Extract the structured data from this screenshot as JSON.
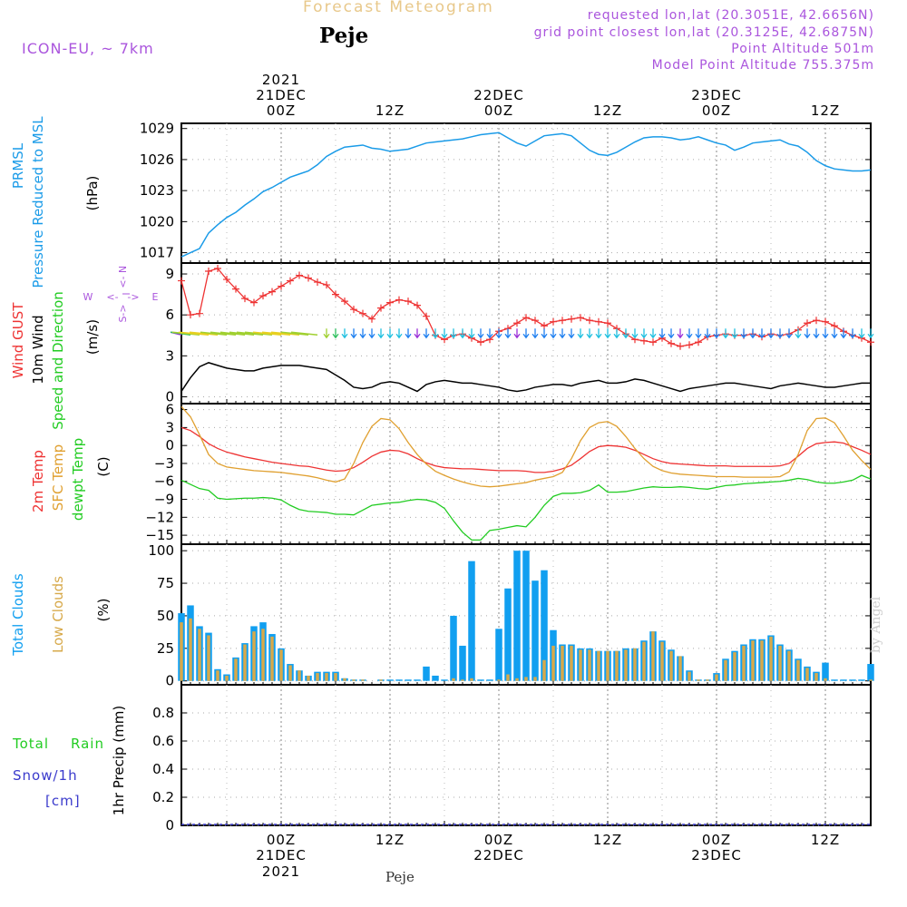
{
  "header": {
    "title": "Forecast Meteogram",
    "location": "Peje",
    "model": "ICON-EU, ~ 7km",
    "requested": "requested lon,lat (20.3051E, 42.6656N)",
    "grid_point": "grid point closest lon,lat (20.3125E, 42.6875N)",
    "point_altitude": "Point Altitude 501m",
    "model_altitude": "Model Point Altitude 755.375m",
    "footer_location": "Peje",
    "watermark": "by Angel"
  },
  "colors": {
    "pressure": "#1a9be8",
    "gust": "#ee3333",
    "wind": "#000000",
    "temp": "#ee3333",
    "sfc_temp": "#e0a030",
    "dewpt": "#22cc22",
    "total_clouds": "#119ff0",
    "low_clouds": "#d7a94a",
    "precip": "#3a3acc",
    "annot": "#aa55dd"
  },
  "time_axis": {
    "year": "2021",
    "ticks": [
      "00Z",
      "12Z",
      "00Z",
      "12Z",
      "00Z",
      "12Z"
    ],
    "ticks_hours": [
      0,
      12,
      24,
      36,
      48,
      60
    ],
    "dates": [
      {
        "hour": 0,
        "label": "21DEC"
      },
      {
        "hour": 24,
        "label": "22DEC"
      },
      {
        "hour": 48,
        "label": "23DEC"
      }
    ],
    "range_hours": [
      -11,
      65
    ]
  },
  "chart_data": [
    {
      "id": "pressure",
      "type": "line",
      "ylabel_lines": [
        "PRMSL",
        "Pressure Reduced to MSL"
      ],
      "unit": "(hPa)",
      "ylim": [
        1016,
        1029.5
      ],
      "yticks": [
        1017,
        1020,
        1023,
        1026,
        1029
      ],
      "x": [
        -11,
        -10,
        -9,
        -8,
        -7,
        -6,
        -5,
        -4,
        -3,
        -2,
        -1,
        0,
        1,
        2,
        3,
        4,
        5,
        6,
        7,
        8,
        9,
        10,
        11,
        12,
        13,
        14,
        15,
        16,
        17,
        18,
        19,
        20,
        21,
        22,
        23,
        24,
        25,
        26,
        27,
        28,
        29,
        30,
        31,
        32,
        33,
        34,
        35,
        36,
        37,
        38,
        39,
        40,
        41,
        42,
        43,
        44,
        45,
        46,
        47,
        48,
        49,
        50,
        51,
        52,
        53,
        54,
        55,
        56,
        57,
        58,
        59,
        60,
        61,
        62,
        63,
        64,
        65
      ],
      "series": [
        {
          "name": "PRMSL",
          "values": [
            1016.6,
            1017.0,
            1017.4,
            1018.9,
            1019.7,
            1020.4,
            1020.9,
            1021.6,
            1022.2,
            1022.9,
            1023.3,
            1023.8,
            1024.3,
            1024.6,
            1024.9,
            1025.5,
            1026.3,
            1026.8,
            1027.2,
            1027.3,
            1027.4,
            1027.1,
            1027.0,
            1026.8,
            1026.9,
            1027.0,
            1027.3,
            1027.6,
            1027.7,
            1027.8,
            1027.9,
            1028.0,
            1028.2,
            1028.4,
            1028.5,
            1028.6,
            1028.1,
            1027.6,
            1027.3,
            1027.8,
            1028.3,
            1028.4,
            1028.5,
            1028.3,
            1027.6,
            1026.9,
            1026.5,
            1026.4,
            1026.7,
            1027.2,
            1027.7,
            1028.1,
            1028.2,
            1028.2,
            1028.1,
            1027.9,
            1028.0,
            1028.2,
            1027.9,
            1027.6,
            1027.4,
            1026.9,
            1027.2,
            1027.6,
            1027.7,
            1027.8,
            1027.9,
            1027.5,
            1027.3,
            1026.7,
            1025.9,
            1025.4,
            1025.1,
            1025.0,
            1024.9,
            1024.9,
            1025.0
          ]
        }
      ]
    },
    {
      "id": "wind",
      "type": "line",
      "ylabel_lines": [
        "Wind GUST",
        "10m Wind",
        "Speed and Direction"
      ],
      "unit": "(m/s)",
      "compass": {
        "n": "N",
        "s": "S",
        "w": "W",
        "e": "E",
        "arrow_left": "<-",
        "arrow_right": "->"
      },
      "ylim": [
        -0.5,
        9.8
      ],
      "yticks": [
        0,
        3,
        6,
        9
      ],
      "x": [
        -11,
        -10,
        -9,
        -8,
        -7,
        -6,
        -5,
        -4,
        -3,
        -2,
        -1,
        0,
        1,
        2,
        3,
        4,
        5,
        6,
        7,
        8,
        9,
        10,
        11,
        12,
        13,
        14,
        15,
        16,
        17,
        18,
        19,
        20,
        21,
        22,
        23,
        24,
        25,
        26,
        27,
        28,
        29,
        30,
        31,
        32,
        33,
        34,
        35,
        36,
        37,
        38,
        39,
        40,
        41,
        42,
        43,
        44,
        45,
        46,
        47,
        48,
        49,
        50,
        51,
        52,
        53,
        54,
        55,
        56,
        57,
        58,
        59,
        60,
        61,
        62,
        63,
        64,
        65
      ],
      "series": [
        {
          "name": "Wind GUST",
          "values": [
            8.5,
            6.0,
            6.1,
            9.2,
            9.4,
            8.6,
            7.9,
            7.2,
            6.9,
            7.4,
            7.7,
            8.1,
            8.5,
            8.9,
            8.7,
            8.4,
            8.2,
            7.5,
            7.0,
            6.4,
            6.1,
            5.7,
            6.5,
            6.9,
            7.1,
            7.0,
            6.7,
            5.9,
            4.5,
            4.2,
            4.5,
            4.6,
            4.3,
            4.0,
            4.2,
            4.8,
            5.0,
            5.4,
            5.8,
            5.6,
            5.2,
            5.5,
            5.6,
            5.7,
            5.8,
            5.6,
            5.5,
            5.4,
            5.0,
            4.6,
            4.2,
            4.1,
            4.0,
            4.3,
            3.9,
            3.7,
            3.8,
            4.0,
            4.4,
            4.5,
            4.6,
            4.5,
            4.5,
            4.6,
            4.4,
            4.6,
            4.5,
            4.6,
            4.9,
            5.4,
            5.6,
            5.5,
            5.2,
            4.8,
            4.5,
            4.3,
            4.0
          ]
        },
        {
          "name": "10m Wind",
          "values": [
            0.4,
            1.4,
            2.2,
            2.5,
            2.3,
            2.1,
            2.0,
            1.9,
            1.9,
            2.1,
            2.2,
            2.3,
            2.3,
            2.3,
            2.2,
            2.1,
            2.0,
            1.6,
            1.2,
            0.7,
            0.6,
            0.7,
            1.0,
            1.1,
            1.0,
            0.7,
            0.4,
            0.9,
            1.1,
            1.2,
            1.1,
            1.0,
            1.0,
            0.9,
            0.8,
            0.7,
            0.5,
            0.4,
            0.5,
            0.7,
            0.8,
            0.9,
            0.9,
            0.8,
            1.0,
            1.1,
            1.2,
            1.0,
            1.0,
            1.1,
            1.3,
            1.2,
            1.0,
            0.8,
            0.6,
            0.4,
            0.6,
            0.7,
            0.8,
            0.9,
            1.0,
            1.0,
            0.9,
            0.8,
            0.7,
            0.6,
            0.8,
            0.9,
            1.0,
            0.9,
            0.8,
            0.7,
            0.7,
            0.8,
            0.9,
            1.0,
            1.0
          ]
        }
      ]
    },
    {
      "id": "temperature",
      "type": "line",
      "ylabel_lines": [
        "2m Temp",
        "SFC Temp",
        "dewpt Temp"
      ],
      "unit": "(C)",
      "ylim": [
        -16.5,
        7
      ],
      "yticks": [
        6,
        3,
        0,
        -3,
        -6,
        -9,
        -12,
        -15
      ],
      "x": [
        -11,
        -10,
        -9,
        -8,
        -7,
        -6,
        -5,
        -4,
        -3,
        -2,
        -1,
        0,
        1,
        2,
        3,
        4,
        5,
        6,
        7,
        8,
        9,
        10,
        11,
        12,
        13,
        14,
        15,
        16,
        17,
        18,
        19,
        20,
        21,
        22,
        23,
        24,
        25,
        26,
        27,
        28,
        29,
        30,
        31,
        32,
        33,
        34,
        35,
        36,
        37,
        38,
        39,
        40,
        41,
        42,
        43,
        44,
        45,
        46,
        47,
        48,
        49,
        50,
        51,
        52,
        53,
        54,
        55,
        56,
        57,
        58,
        59,
        60,
        61,
        62,
        63,
        64,
        65
      ],
      "series": [
        {
          "name": "2m Temp",
          "values": [
            3.0,
            2.5,
            1.5,
            0.3,
            -0.5,
            -1.1,
            -1.5,
            -1.9,
            -2.2,
            -2.5,
            -2.8,
            -3.0,
            -3.2,
            -3.4,
            -3.5,
            -3.8,
            -4.1,
            -4.3,
            -4.2,
            -3.7,
            -2.8,
            -1.8,
            -1.1,
            -0.8,
            -0.9,
            -1.4,
            -2.2,
            -2.9,
            -3.4,
            -3.7,
            -3.8,
            -3.9,
            -3.9,
            -4.0,
            -4.1,
            -4.2,
            -4.2,
            -4.2,
            -4.3,
            -4.5,
            -4.5,
            -4.3,
            -3.9,
            -3.3,
            -2.2,
            -1.0,
            -0.2,
            0.0,
            -0.1,
            -0.3,
            -0.8,
            -1.5,
            -2.2,
            -2.7,
            -3.0,
            -3.1,
            -3.2,
            -3.3,
            -3.4,
            -3.4,
            -3.4,
            -3.5,
            -3.5,
            -3.5,
            -3.5,
            -3.5,
            -3.4,
            -3.0,
            -1.8,
            -0.5,
            0.3,
            0.5,
            0.6,
            0.4,
            -0.2,
            -0.8,
            -1.5
          ]
        },
        {
          "name": "SFC Temp",
          "values": [
            6.5,
            4.8,
            1.8,
            -1.5,
            -3.0,
            -3.6,
            -3.8,
            -4.0,
            -4.2,
            -4.3,
            -4.4,
            -4.5,
            -4.7,
            -4.9,
            -5.1,
            -5.4,
            -5.8,
            -6.1,
            -5.6,
            -3.0,
            0.5,
            3.2,
            4.5,
            4.3,
            2.8,
            0.5,
            -1.5,
            -3.1,
            -4.3,
            -5.0,
            -5.6,
            -6.1,
            -6.5,
            -6.8,
            -6.9,
            -6.8,
            -6.6,
            -6.4,
            -6.2,
            -5.8,
            -5.5,
            -5.2,
            -4.5,
            -2.2,
            0.8,
            3.0,
            3.8,
            4.0,
            3.2,
            1.5,
            -0.5,
            -2.2,
            -3.5,
            -4.2,
            -4.6,
            -4.8,
            -4.9,
            -5.0,
            -5.1,
            -5.2,
            -5.2,
            -5.2,
            -5.3,
            -5.3,
            -5.3,
            -5.3,
            -5.2,
            -4.4,
            -1.5,
            2.5,
            4.5,
            4.6,
            3.8,
            1.6,
            -0.8,
            -2.5,
            -4.0
          ]
        },
        {
          "name": "dewpt Temp",
          "values": [
            -5.8,
            -6.5,
            -7.2,
            -7.5,
            -8.8,
            -9.0,
            -8.9,
            -8.8,
            -8.8,
            -8.7,
            -8.8,
            -9.1,
            -10.0,
            -10.7,
            -11.0,
            -11.1,
            -11.2,
            -11.5,
            -11.5,
            -11.6,
            -10.8,
            -10.0,
            -9.8,
            -9.6,
            -9.5,
            -9.2,
            -9.0,
            -9.1,
            -9.5,
            -10.5,
            -12.6,
            -14.5,
            -15.8,
            -15.8,
            -14.2,
            -14.0,
            -13.7,
            -13.4,
            -13.6,
            -12.0,
            -10.0,
            -8.5,
            -8.0,
            -8.0,
            -7.9,
            -7.5,
            -6.6,
            -7.8,
            -7.8,
            -7.7,
            -7.4,
            -7.1,
            -6.9,
            -7.0,
            -7.0,
            -6.9,
            -7.0,
            -7.2,
            -7.3,
            -7.0,
            -6.7,
            -6.6,
            -6.4,
            -6.3,
            -6.2,
            -6.1,
            -6.0,
            -5.8,
            -5.5,
            -5.7,
            -6.1,
            -6.3,
            -6.3,
            -6.1,
            -5.8,
            -5.0,
            -5.6
          ]
        }
      ]
    },
    {
      "id": "clouds",
      "type": "bar",
      "ylabel_lines": [
        "Total Clouds",
        "Low Clouds"
      ],
      "unit": "(%)",
      "ylim": [
        -3,
        105
      ],
      "yticks": [
        0,
        25,
        50,
        75,
        100
      ],
      "x": [
        -11,
        -10,
        -9,
        -8,
        -7,
        -6,
        -5,
        -4,
        -3,
        -2,
        -1,
        0,
        1,
        2,
        3,
        4,
        5,
        6,
        7,
        8,
        9,
        10,
        11,
        12,
        13,
        14,
        15,
        16,
        17,
        18,
        19,
        20,
        21,
        22,
        23,
        24,
        25,
        26,
        27,
        28,
        29,
        30,
        31,
        32,
        33,
        34,
        35,
        36,
        37,
        38,
        39,
        40,
        41,
        42,
        43,
        44,
        45,
        46,
        47,
        48,
        49,
        50,
        51,
        52,
        53,
        54,
        55,
        56,
        57,
        58,
        59,
        60,
        61,
        62,
        63,
        64,
        65
      ],
      "series": [
        {
          "name": "Total Clouds",
          "values": [
            52,
            58,
            42,
            37,
            9,
            5,
            18,
            29,
            42,
            45,
            36,
            25,
            13,
            8,
            4,
            7,
            7,
            7,
            2,
            1,
            1,
            0,
            1,
            1,
            1,
            1,
            1,
            11,
            4,
            1,
            50,
            27,
            92,
            1,
            1,
            40,
            71,
            100,
            100,
            77,
            85,
            39,
            28,
            28,
            25,
            25,
            23,
            23,
            23,
            25,
            25,
            31,
            38,
            31,
            24,
            19,
            8,
            1,
            1,
            6,
            17,
            23,
            28,
            32,
            32,
            35,
            28,
            24,
            17,
            11,
            7,
            14,
            1,
            1,
            1,
            1,
            13
          ]
        },
        {
          "name": "Low Clouds",
          "values": [
            45,
            48,
            40,
            35,
            8,
            4,
            17,
            28,
            38,
            40,
            34,
            24,
            12,
            8,
            4,
            6,
            6,
            6,
            2,
            1,
            1,
            0,
            1,
            0,
            0,
            0,
            0,
            0,
            0,
            0,
            2,
            1,
            2,
            0,
            0,
            1,
            5,
            2,
            3,
            3,
            16,
            27,
            27,
            27,
            24,
            24,
            23,
            23,
            23,
            24,
            25,
            30,
            38,
            30,
            23,
            19,
            7,
            1,
            1,
            5,
            16,
            22,
            27,
            31,
            31,
            34,
            27,
            23,
            16,
            10,
            6,
            2,
            0,
            0,
            0,
            0,
            1
          ]
        }
      ]
    },
    {
      "id": "precip",
      "type": "line",
      "ylabel_lines": [
        "1hr Precip (mm)"
      ],
      "left_labels": [
        "Total",
        "Rain",
        "Snow/1h",
        "[cm]"
      ],
      "ylim": [
        0,
        1
      ],
      "yticks": [
        0,
        0.2,
        0.4,
        0.6,
        0.8
      ],
      "ytick_labels": [
        "0",
        "0.2",
        "0.4",
        "0.6",
        "0.8"
      ],
      "series": [
        {
          "name": "Total",
          "values": []
        }
      ]
    }
  ]
}
